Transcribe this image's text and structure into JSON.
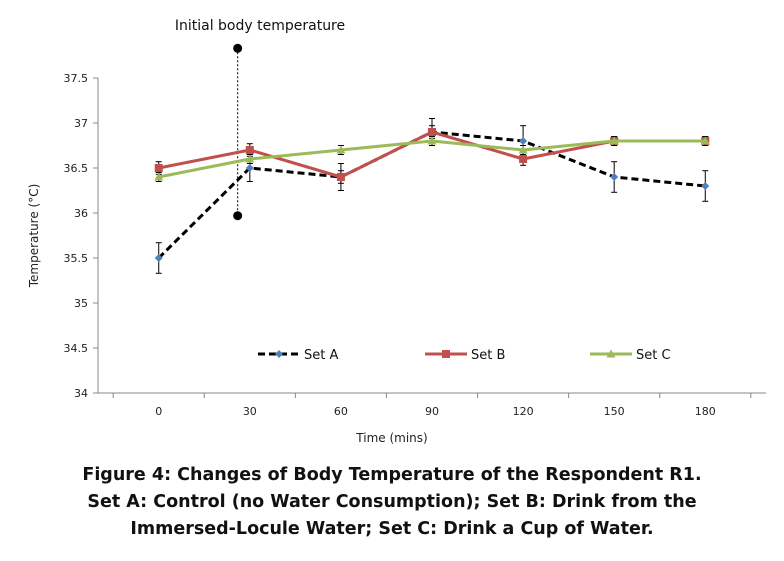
{
  "chart_data": {
    "type": "line",
    "title": "",
    "xlabel": "Time (mins)",
    "ylabel": "Temperature (°C)",
    "x": [
      0,
      30,
      60,
      90,
      120,
      150,
      180
    ],
    "x_tick_labels": [
      "0",
      "30",
      "60",
      "90",
      "120",
      "150",
      "180"
    ],
    "xlim": [
      -20,
      200
    ],
    "ylim": [
      34,
      37.5
    ],
    "y_ticks": [
      34,
      34.5,
      35,
      35.5,
      36,
      36.5,
      37,
      37.5
    ],
    "y_tick_labels": [
      "34",
      "34.5",
      "35",
      "35.5",
      "36",
      "36.5",
      "37",
      "37.5"
    ],
    "grid": false,
    "legend_position": "bottom-inside",
    "series": [
      {
        "name": "Set A",
        "values": [
          35.5,
          36.5,
          36.4,
          36.9,
          36.8,
          36.4,
          36.3
        ],
        "errors": [
          0.17,
          0.15,
          0.15,
          0.15,
          0.17,
          0.17,
          0.17
        ],
        "color": "#4f81bd",
        "line_color": "#000000",
        "line_style": "dashed",
        "marker": "diamond"
      },
      {
        "name": "Set B",
        "values": [
          36.5,
          36.7,
          36.4,
          36.9,
          36.6,
          36.8,
          36.8
        ],
        "errors": [
          0.07,
          0.07,
          0.07,
          0.07,
          0.07,
          0.05,
          0.05
        ],
        "color": "#c0504d",
        "line_color": "#c0504d",
        "line_style": "solid",
        "marker": "square"
      },
      {
        "name": "Set C",
        "values": [
          36.4,
          36.6,
          36.7,
          36.8,
          36.7,
          36.8,
          36.8
        ],
        "errors": [
          0.05,
          0.05,
          0.05,
          0.05,
          0.05,
          0.05,
          0.05
        ],
        "color": "#9bbb59",
        "line_color": "#9bbb59",
        "line_style": "solid",
        "marker": "triangle"
      }
    ],
    "annotation": {
      "text": "Initial body temperature",
      "x": 26,
      "y_top": 37.83,
      "y_bottom": 35.97
    }
  },
  "caption": {
    "line1": "Figure 4: Changes of Body Temperature of the Respondent R1.",
    "line2": "Set A: Control (no Water Consumption); Set B: Drink from the",
    "line3": "Immersed-Locule Water; Set C: Drink a Cup of Water."
  }
}
